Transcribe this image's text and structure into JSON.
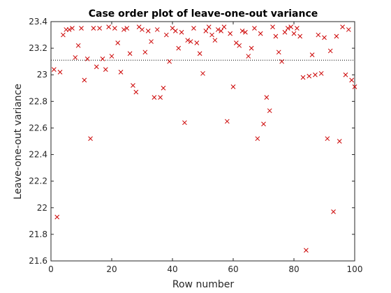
{
  "chart_data": {
    "type": "scatter",
    "title": "Case order plot of leave-one-out variance",
    "xlabel": "Row number",
    "ylabel": "Leave-one-out variance",
    "xlim": [
      0,
      100
    ],
    "ylim": [
      21.6,
      23.4
    ],
    "xticks": [
      0,
      20,
      40,
      60,
      80,
      100
    ],
    "yticks": [
      21.6,
      21.8,
      22,
      22.2,
      22.4,
      22.6,
      22.8,
      23,
      23.2,
      23.4
    ],
    "xtick_labels": [
      "0",
      "20",
      "40",
      "60",
      "80",
      "100"
    ],
    "ytick_labels": [
      "21.6",
      "21.8",
      "22",
      "22.2",
      "22.4",
      "22.6",
      "22.8",
      "23",
      "23.2",
      "23.4"
    ],
    "reference_line": {
      "y": 23.11,
      "style": "dotted",
      "color": "#000000"
    },
    "marker": {
      "shape": "x",
      "color": "#cc0000"
    },
    "grid": false,
    "x": [
      1,
      2,
      3,
      4,
      5,
      6,
      7,
      8,
      9,
      10,
      11,
      12,
      13,
      14,
      15,
      16,
      17,
      18,
      19,
      20,
      21,
      22,
      23,
      24,
      25,
      26,
      27,
      28,
      29,
      30,
      31,
      32,
      33,
      34,
      35,
      36,
      37,
      38,
      39,
      40,
      41,
      42,
      43,
      44,
      45,
      46,
      47,
      48,
      49,
      50,
      51,
      52,
      53,
      54,
      55,
      56,
      57,
      58,
      59,
      60,
      61,
      62,
      63,
      64,
      65,
      66,
      67,
      68,
      69,
      70,
      71,
      72,
      73,
      74,
      75,
      76,
      77,
      78,
      79,
      80,
      81,
      82,
      83,
      84,
      85,
      86,
      87,
      88,
      89,
      90,
      91,
      92,
      93,
      94,
      95,
      96,
      97,
      98,
      99,
      100
    ],
    "y": [
      23.04,
      21.93,
      23.02,
      23.3,
      23.34,
      23.34,
      23.35,
      23.13,
      23.22,
      23.35,
      22.96,
      23.12,
      22.52,
      23.35,
      23.06,
      23.35,
      23.12,
      23.04,
      23.36,
      23.14,
      23.35,
      23.24,
      23.02,
      23.34,
      23.35,
      23.16,
      22.92,
      22.87,
      23.36,
      23.34,
      23.17,
      23.33,
      23.25,
      22.83,
      23.34,
      22.83,
      22.9,
      23.3,
      23.1,
      23.35,
      23.33,
      23.2,
      23.32,
      22.64,
      23.26,
      23.25,
      23.35,
      23.24,
      23.16,
      23.01,
      23.33,
      23.36,
      23.3,
      23.26,
      23.34,
      23.33,
      23.36,
      22.65,
      23.31,
      22.91,
      23.24,
      23.22,
      23.33,
      23.32,
      23.14,
      23.2,
      23.35,
      22.52,
      23.31,
      22.63,
      22.83,
      22.73,
      23.36,
      23.29,
      23.17,
      23.1,
      23.32,
      23.35,
      23.36,
      23.31,
      23.35,
      23.29,
      22.98,
      21.68,
      22.99,
      23.15,
      23.0,
      23.3,
      23.01,
      23.28,
      22.52,
      23.18,
      21.97,
      23.29,
      22.5,
      23.36,
      23.0,
      23.34,
      22.96,
      22.91
    ]
  }
}
